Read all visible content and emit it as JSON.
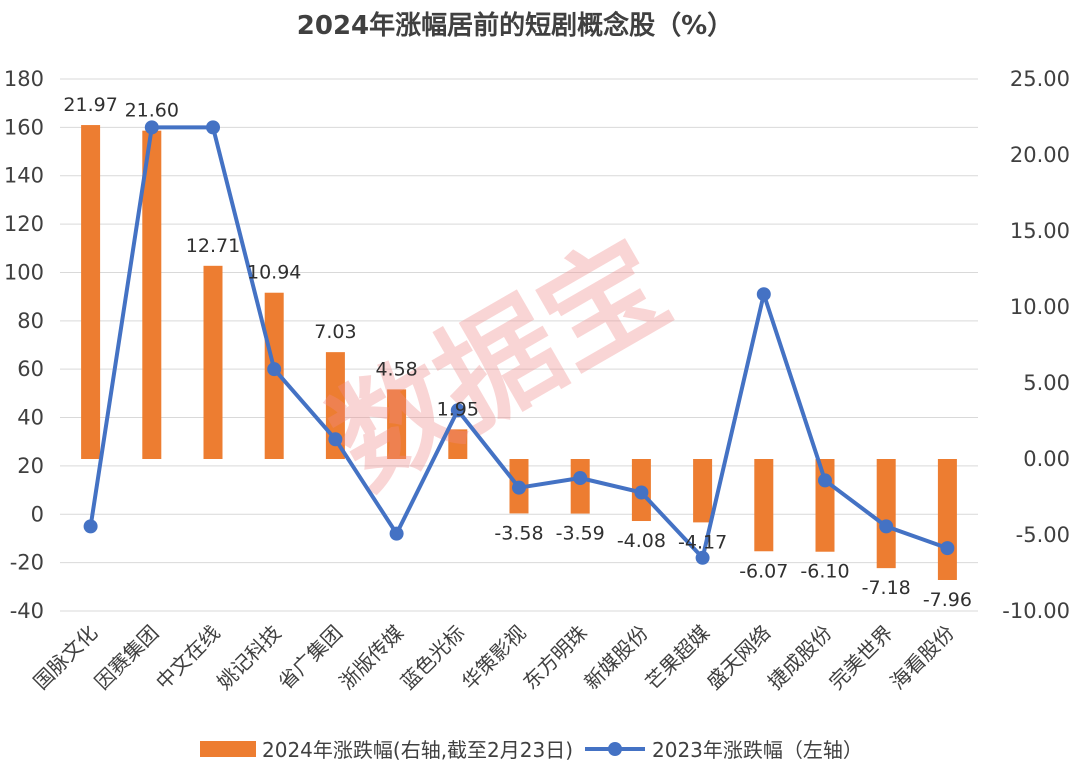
{
  "chart_data": {
    "type": "bar",
    "title": "2024年涨幅居前的短剧概念股（%）",
    "categories": [
      "国脉文化",
      "因赛集团",
      "中文在线",
      "姚记科技",
      "省广集团",
      "浙版传媒",
      "蓝色光标",
      "华策影视",
      "东方明珠",
      "新媒股份",
      "芒果超媒",
      "盛天网络",
      "捷成股份",
      "完美世界",
      "海看股份"
    ],
    "series": [
      {
        "name": "2024年涨跌幅(右轴,截至2月23日)",
        "type": "bar",
        "axis": "right",
        "color": "#ED7D31",
        "values": [
          21.97,
          21.6,
          12.71,
          10.94,
          7.03,
          4.58,
          1.95,
          -3.58,
          -3.59,
          -4.08,
          -4.17,
          -6.07,
          -6.1,
          -7.18,
          -7.96
        ],
        "labels": [
          "21.97",
          "21.60",
          "12.71",
          "10.94",
          "7.03",
          "4.58",
          "1.95",
          "-3.58",
          "-3.59",
          "-4.08",
          "-4.17",
          "-6.07",
          "-6.10",
          "-7.18",
          "-7.96"
        ]
      },
      {
        "name": "2023年涨跌幅（左轴）",
        "type": "line",
        "axis": "left",
        "color": "#4472C4",
        "values": [
          -5,
          160,
          160,
          60,
          31,
          -8,
          43,
          11,
          15,
          9,
          -18,
          91,
          14,
          -5,
          -14
        ]
      }
    ],
    "y_left": {
      "min": -40,
      "max": 180,
      "step": 20,
      "ticks": [
        "-40",
        "-20",
        "0",
        "20",
        "40",
        "60",
        "80",
        "100",
        "120",
        "140",
        "160",
        "180"
      ]
    },
    "y_right": {
      "min": -10,
      "max": 25,
      "step": 5,
      "ticks": [
        "-10.00",
        "-5.00",
        "0.00",
        "5.00",
        "10.00",
        "15.00",
        "20.00",
        "25.00"
      ]
    },
    "grid": true,
    "legend_position": "bottom"
  },
  "watermark": "数据宝"
}
